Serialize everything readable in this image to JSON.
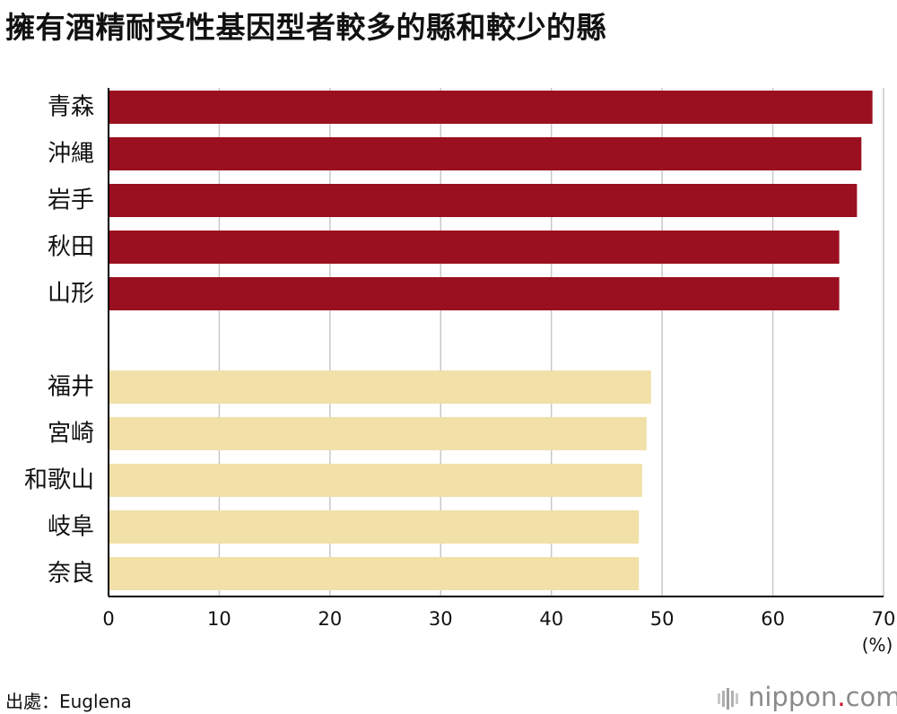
{
  "title": "擁有酒精耐受性基因型者較多的縣和較少的縣",
  "source": "出處：Euglena",
  "logo": {
    "brand": "nippon",
    "dot": ".",
    "tld": "com"
  },
  "colors": {
    "high": "#9b1020",
    "low": "#f1e0a8",
    "grid": "#c8c8c8",
    "axis": "#000000"
  },
  "chart_data": {
    "type": "bar",
    "orientation": "horizontal",
    "categories": [
      "青森",
      "沖縄",
      "岩手",
      "秋田",
      "山形",
      "福井",
      "宮崎",
      "和歌山",
      "岐阜",
      "奈良"
    ],
    "groups": [
      {
        "categories": [
          "青森",
          "沖縄",
          "岩手",
          "秋田",
          "山形"
        ],
        "values": [
          69.0,
          68.0,
          67.6,
          66.0,
          66.0
        ],
        "color": "#9b1020"
      },
      {
        "categories": [
          "福井",
          "宮崎",
          "和歌山",
          "岐阜",
          "奈良"
        ],
        "values": [
          49.0,
          48.6,
          48.2,
          47.9,
          47.9
        ],
        "color": "#f1e0a8"
      }
    ],
    "xlim": [
      0,
      70
    ],
    "xticks": [
      "0",
      "10",
      "20",
      "30",
      "40",
      "50",
      "60",
      "70"
    ],
    "unit": "(%)",
    "grid": true
  }
}
